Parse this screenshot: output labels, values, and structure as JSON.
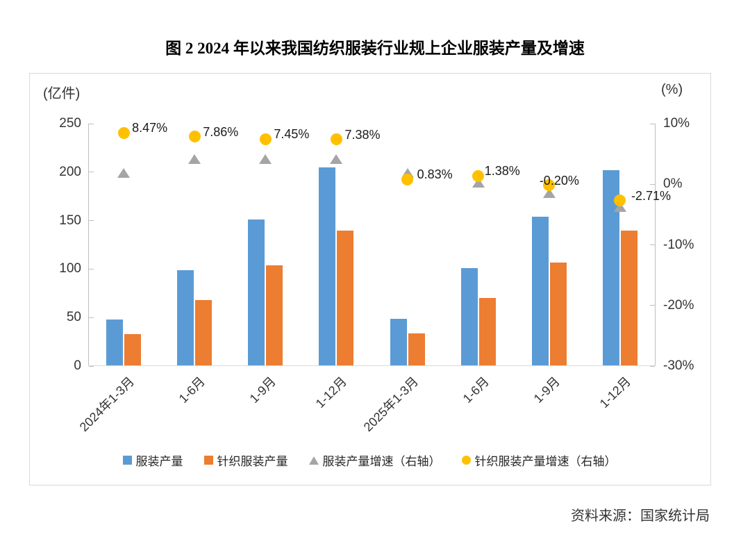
{
  "title": "图 2  2024 年以来我国纺织服装行业规上企业服装产量及增速",
  "source": "资料来源：国家统计局",
  "left_axis_unit": "(亿件)",
  "right_axis_unit": "(%)",
  "chart_data": {
    "type": "bar",
    "subtype": "dual-axis combo: grouped bars (left axis) + scatter markers (right axis)",
    "categories": [
      "2024年1-3月",
      "1-6月",
      "1-9月",
      "1-12月",
      "2025年1-3月",
      "1-6月",
      "1-9月",
      "1-12月"
    ],
    "left_axis": {
      "min": 0,
      "max": 250,
      "tick_step": 50,
      "tick_labels": [
        "250",
        "200",
        "150",
        "100",
        "50",
        "0"
      ],
      "unit": "亿件"
    },
    "right_axis": {
      "min": -30,
      "max": 10,
      "tick_step": 10,
      "tick_labels": [
        "10%",
        "0%",
        "-10%",
        "-20%",
        "-30%"
      ],
      "unit": "%"
    },
    "grid": "off",
    "legend_position": "bottom",
    "series": [
      {
        "name": "服装产量",
        "type": "bar",
        "axis": "left",
        "color": "#5B9BD5",
        "values": [
          48,
          99,
          151,
          205,
          49,
          101,
          154,
          202
        ]
      },
      {
        "name": "针织服装产量",
        "type": "bar",
        "axis": "left",
        "color": "#ED7D31",
        "values": [
          33,
          68,
          104,
          140,
          34,
          70,
          107,
          140
        ]
      },
      {
        "name": "服装产量增速（右轴）",
        "type": "scatter",
        "marker": "triangle",
        "axis": "right",
        "color": "#A5A5A5",
        "values": [
          1.9,
          4.2,
          4.1,
          4.1,
          1.9,
          0.3,
          -1.5,
          -3.8
        ],
        "labels": []
      },
      {
        "name": "针织服装产量增速（右轴）",
        "type": "scatter",
        "marker": "circle",
        "axis": "right",
        "color": "#FFC000",
        "values": [
          8.47,
          7.86,
          7.45,
          7.38,
          0.83,
          1.38,
          -0.2,
          -2.71
        ],
        "labels": [
          "8.47%",
          "7.86%",
          "7.45%",
          "7.38%",
          "0.83%",
          "1.38%",
          "-0.20%",
          "-2.71%"
        ]
      }
    ]
  },
  "colors": {
    "bar_blue": "#5B9BD5",
    "bar_orange": "#ED7D31",
    "marker_gray": "#A5A5A5",
    "marker_yellow": "#FFC000",
    "axis_line": "#bfbfbf",
    "border": "#d9d9d9"
  }
}
